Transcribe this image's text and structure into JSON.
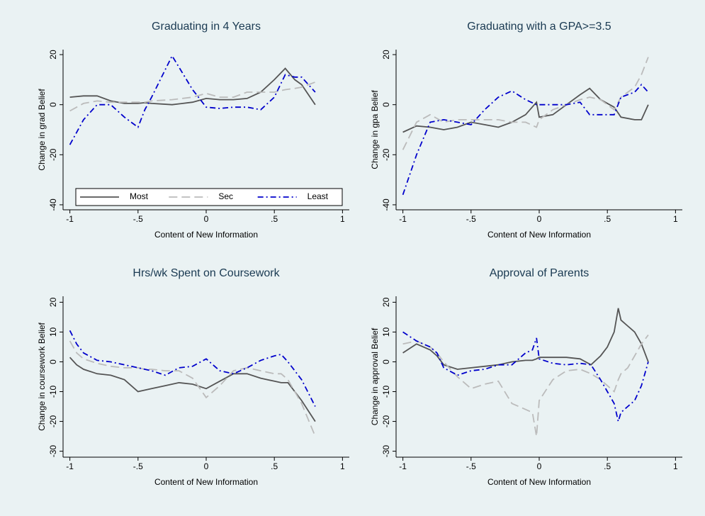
{
  "chart_data": [
    {
      "type": "line",
      "title": "Graduating in 4 Years",
      "x_label": "Content of New Information",
      "y_label": "Change in grad Belief",
      "x": [
        -1,
        -0.9,
        -0.8,
        -0.7,
        -0.6,
        -0.5,
        -0.45,
        -0.4,
        -0.25,
        -0.1,
        0,
        0.1,
        0.2,
        0.3,
        0.4,
        0.5,
        0.58,
        0.65,
        0.7,
        0.8
      ],
      "series": [
        {
          "name": "Most",
          "color": "#555555",
          "dash": "solid",
          "values": [
            3,
            3.5,
            3.5,
            1.5,
            0.5,
            0.5,
            0.8,
            0.5,
            0,
            1,
            2.5,
            2,
            2,
            2.5,
            5,
            10,
            14.5,
            10,
            8,
            0
          ]
        },
        {
          "name": "Sec",
          "color": "#bbbbbb",
          "dash": "dash",
          "values": [
            -2.5,
            0.5,
            1.5,
            1,
            1,
            1,
            1,
            1.5,
            2,
            3,
            4.5,
            3,
            3,
            5,
            5,
            5,
            6,
            6.5,
            7,
            9
          ]
        },
        {
          "name": "Least",
          "color": "#0000cc",
          "dash": "dashdot",
          "values": [
            -16,
            -6,
            0,
            0,
            -5,
            -9,
            -2,
            3,
            19.5,
            6,
            -1,
            -1.5,
            -1,
            -1,
            -2,
            3,
            12,
            11,
            11,
            5
          ]
        }
      ],
      "xlim": [
        -1.05,
        1.05
      ],
      "ylim": [
        -42,
        22
      ],
      "xticks": [
        -1,
        {
          "value": -0.5,
          "label": "-.5"
        },
        0,
        {
          "value": 0.5,
          "label": ".5"
        },
        1
      ],
      "yticks": [
        -40,
        -20,
        0,
        20
      ],
      "legend": "bottom"
    },
    {
      "type": "line",
      "title": "Graduating with a GPA>=3.5",
      "x_label": "Content of New Information",
      "y_label": "Change in gpa Belief",
      "x": [
        -1,
        -0.9,
        -0.8,
        -0.7,
        -0.6,
        -0.5,
        -0.4,
        -0.3,
        -0.2,
        -0.1,
        -0.02,
        0,
        0.1,
        0.2,
        0.3,
        0.37,
        0.45,
        0.55,
        0.6,
        0.7,
        0.75,
        0.8
      ],
      "series": [
        {
          "name": "Most",
          "color": "#555555",
          "dash": "solid",
          "values": [
            -11,
            -8.5,
            -9,
            -10,
            -9,
            -7,
            -8,
            -9,
            -7,
            -4,
            1,
            -5,
            -4,
            0,
            4,
            6.5,
            2,
            -1,
            -5,
            -6,
            -6,
            0
          ]
        },
        {
          "name": "Sec",
          "color": "#bbbbbb",
          "dash": "dash",
          "values": [
            -18,
            -7,
            -4,
            -7,
            -6,
            -6,
            -6,
            -6,
            -7,
            -7,
            -9,
            -6,
            -2,
            0,
            2,
            3,
            2,
            -2,
            3,
            7,
            12,
            19
          ]
        },
        {
          "name": "Least",
          "color": "#0000cc",
          "dash": "dashdot",
          "values": [
            -36,
            -20,
            -7,
            -6,
            -7,
            -8,
            -2,
            3,
            5.5,
            2,
            0,
            0,
            0,
            0,
            1,
            -4,
            -4,
            -4,
            3,
            5,
            8,
            5
          ]
        }
      ],
      "xlim": [
        -1.05,
        1.05
      ],
      "ylim": [
        -42,
        22
      ],
      "xticks": [
        -1,
        {
          "value": -0.5,
          "label": "-.5"
        },
        0,
        {
          "value": 0.5,
          "label": ".5"
        },
        1
      ],
      "yticks": [
        -40,
        -20,
        0,
        20
      ]
    },
    {
      "type": "line",
      "title": "Hrs/wk Spent on Coursework",
      "x_label": "Content of New Information",
      "y_label": "Change in coursework Belief",
      "x": [
        -1,
        -0.95,
        -0.9,
        -0.8,
        -0.7,
        -0.6,
        -0.5,
        -0.45,
        -0.4,
        -0.3,
        -0.2,
        -0.1,
        0,
        0.1,
        0.2,
        0.3,
        0.4,
        0.5,
        0.55,
        0.6,
        0.7,
        0.8
      ],
      "series": [
        {
          "name": "Most",
          "color": "#555555",
          "dash": "solid",
          "values": [
            1.5,
            -1,
            -2.5,
            -4,
            -4.5,
            -6,
            -10,
            -9.5,
            -9,
            -8,
            -7,
            -7.5,
            -9,
            -6.5,
            -4,
            -4,
            -5.5,
            -6.5,
            -7,
            -7,
            -13,
            -20
          ]
        },
        {
          "name": "Sec",
          "color": "#bbbbbb",
          "dash": "dash",
          "values": [
            7,
            3,
            1,
            -0.5,
            -1.5,
            -2,
            -2,
            -2.5,
            -2.5,
            -3,
            -3,
            -5.5,
            -12,
            -8,
            -3,
            -2,
            -3,
            -4,
            -4,
            -6,
            -14,
            -25
          ]
        },
        {
          "name": "Least",
          "color": "#0000cc",
          "dash": "dashdot",
          "values": [
            10.5,
            6,
            3,
            0.5,
            0,
            -1,
            -2,
            -2.5,
            -3,
            -4.5,
            -2,
            -1.5,
            1,
            -3,
            -4,
            -2,
            0.5,
            2,
            2.5,
            0,
            -6,
            -15
          ]
        }
      ],
      "xlim": [
        -1.05,
        1.05
      ],
      "ylim": [
        -32,
        22
      ],
      "xticks": [
        -1,
        {
          "value": -0.5,
          "label": "-.5"
        },
        0,
        {
          "value": 0.5,
          "label": ".5"
        },
        1
      ],
      "yticks": [
        -30,
        -20,
        -10,
        0,
        10,
        20
      ]
    },
    {
      "type": "line",
      "title": "Approval of Parents",
      "x_label": "Content of New Information",
      "y_label": "Change in approval Belief",
      "x": [
        -1,
        -0.9,
        -0.8,
        -0.75,
        -0.7,
        -0.6,
        -0.5,
        -0.4,
        -0.3,
        -0.2,
        -0.1,
        -0.05,
        -0.02,
        0,
        0.1,
        0.2,
        0.3,
        0.38,
        0.45,
        0.5,
        0.55,
        0.58,
        0.6,
        0.65,
        0.7,
        0.75,
        0.8
      ],
      "series": [
        {
          "name": "Most",
          "color": "#555555",
          "dash": "solid",
          "values": [
            3,
            6,
            4,
            2,
            -1,
            -2.5,
            -2,
            -1.5,
            -1,
            0,
            0.5,
            0.5,
            1,
            1.5,
            1.5,
            1.5,
            1,
            -1,
            2,
            5,
            10,
            18,
            14,
            12,
            10,
            6,
            0
          ]
        },
        {
          "name": "Sec",
          "color": "#bbbbbb",
          "dash": "dash",
          "values": [
            6,
            7,
            5,
            3,
            0,
            -5,
            -9,
            -7.5,
            -6.5,
            -14,
            -16,
            -17,
            -25,
            -13,
            -6,
            -3,
            -2.5,
            -4,
            -6,
            -8,
            -10,
            -6,
            -4,
            -2,
            2,
            6,
            9
          ]
        },
        {
          "name": "Least",
          "color": "#0000cc",
          "dash": "dashdot",
          "values": [
            10,
            7,
            5,
            3,
            -2,
            -4.5,
            -3,
            -2.5,
            -1,
            -1,
            3,
            4,
            8,
            1,
            -0.5,
            -1,
            -0.5,
            -1,
            -6,
            -10,
            -14,
            -20,
            -17,
            -15,
            -13,
            -8,
            0
          ]
        }
      ],
      "xlim": [
        -1.05,
        1.05
      ],
      "ylim": [
        -32,
        22
      ],
      "xticks": [
        -1,
        {
          "value": -0.5,
          "label": "-.5"
        },
        0,
        {
          "value": 0.5,
          "label": ".5"
        },
        1
      ],
      "yticks": [
        -30,
        -20,
        -10,
        0,
        10,
        20
      ]
    }
  ]
}
